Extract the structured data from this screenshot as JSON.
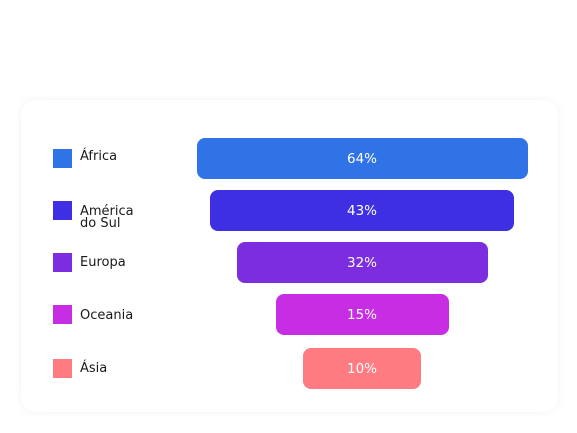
{
  "chart_data": {
    "type": "bar",
    "categories": [
      "África",
      "América\ndo Sul",
      "Europa",
      "Oceania",
      "Ásia"
    ],
    "values": [
      64,
      43,
      32,
      15,
      10
    ],
    "value_labels": [
      "64%",
      "43%",
      "32%",
      "15%",
      "10%"
    ],
    "colors": [
      "#2f73e6",
      "#3f2fe3",
      "#7b2ddf",
      "#c72ee4",
      "#fe7b82"
    ],
    "title": "",
    "xlabel": "",
    "ylabel": "",
    "legend_position": "left",
    "grid": false,
    "style": "funnel"
  }
}
